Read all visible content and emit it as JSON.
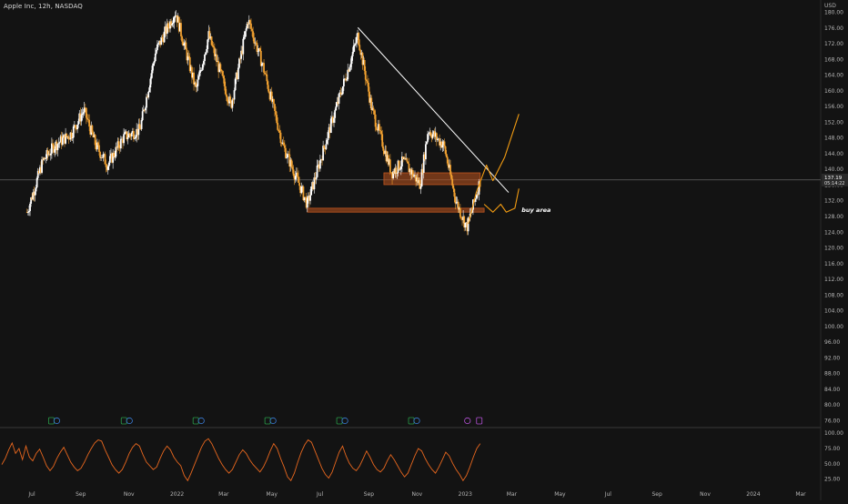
{
  "header": {
    "title": "Apple Inc, 12h, NASDAQ"
  },
  "price_axis": {
    "currency": "USD",
    "current_price": "137.19",
    "countdown": "05:14:22"
  },
  "annotations": {
    "buy_area_label": "buy area"
  },
  "colors": {
    "background": "#131313",
    "candle": "#ffffff",
    "candle_alt": "#f0a030",
    "trendline": "#ffffff",
    "projection": "#f39c12",
    "zone_fill": "#c0561f",
    "rsi": "#e8671e",
    "axis_text": "#b4b4b4"
  },
  "chart_data": [
    {
      "type": "candlestick",
      "title": "Apple Inc, 12h, NASDAQ",
      "ylabel": "USD",
      "ylim": [
        73,
        182
      ],
      "x_ticks": [
        "Jul",
        "Sep",
        "Nov",
        "2022",
        "Mar",
        "May",
        "Jul",
        "Sep",
        "Nov",
        "2023",
        "Mar",
        "May",
        "Jul",
        "Sep",
        "Nov",
        "2024",
        "Mar"
      ],
      "y_ticks": [
        180,
        176,
        172,
        168,
        164,
        160,
        156,
        152,
        148,
        144,
        140,
        136,
        132,
        128,
        124,
        120,
        116,
        112,
        108,
        104,
        100,
        96,
        92,
        88,
        84,
        80,
        76
      ],
      "price_path": [
        [
          "2021-06-25",
          129
        ],
        [
          "2021-07-15",
          142
        ],
        [
          "2021-07-30",
          146
        ],
        [
          "2021-08-20",
          149
        ],
        [
          "2021-09-05",
          155
        ],
        [
          "2021-09-20",
          146
        ],
        [
          "2021-10-05",
          141
        ],
        [
          "2021-10-25",
          148
        ],
        [
          "2021-11-15",
          150
        ],
        [
          "2021-12-05",
          170
        ],
        [
          "2021-12-30",
          180
        ],
        [
          "2022-01-25",
          160
        ],
        [
          "2022-02-10",
          174
        ],
        [
          "2022-03-10",
          156
        ],
        [
          "2022-04-01",
          178
        ],
        [
          "2022-04-20",
          166
        ],
        [
          "2022-05-15",
          146
        ],
        [
          "2022-06-15",
          131
        ],
        [
          "2022-07-10",
          148
        ],
        [
          "2022-08-05",
          165
        ],
        [
          "2022-08-18",
          174
        ],
        [
          "2022-09-05",
          155
        ],
        [
          "2022-09-30",
          139
        ],
        [
          "2022-10-15",
          142
        ],
        [
          "2022-11-05",
          136
        ],
        [
          "2022-11-15",
          150
        ],
        [
          "2022-12-05",
          146
        ],
        [
          "2022-12-20",
          132
        ],
        [
          "2023-01-03",
          125
        ],
        [
          "2023-01-20",
          137
        ]
      ],
      "current_price": 137.19,
      "trendline": {
        "from": [
          "2022-08-18",
          176
        ],
        "to": [
          "2023-02-25",
          134
        ]
      },
      "zones": [
        {
          "from": "2022-09-20",
          "to": "2023-01-20",
          "low": 136,
          "high": 139
        },
        {
          "from": "2022-06-15",
          "to": "2023-01-25",
          "low": 129,
          "high": 130
        }
      ],
      "projection_path": [
        [
          "2023-01-05",
          126
        ],
        [
          "2023-01-15",
          134
        ],
        [
          "2023-01-28",
          141
        ],
        [
          "2023-02-05",
          137
        ],
        [
          "2023-02-20",
          143
        ],
        [
          "2023-03-10",
          154
        ]
      ],
      "projection_path_2": [
        [
          "2023-01-25",
          131
        ],
        [
          "2023-02-05",
          129
        ],
        [
          "2023-02-15",
          131
        ],
        [
          "2023-02-22",
          129
        ],
        [
          "2023-03-05",
          130
        ],
        [
          "2023-03-10",
          135
        ]
      ],
      "buy_area_label": "buy area"
    },
    {
      "type": "line",
      "ylim": [
        15,
        105
      ],
      "y_ticks": [
        100.0,
        75.0,
        50.0,
        25.0
      ],
      "series": [
        {
          "values": [
            48,
            58,
            72,
            83,
            66,
            74,
            56,
            78,
            60,
            54,
            66,
            73,
            60,
            46,
            38,
            45,
            58,
            68,
            76,
            64,
            52,
            44,
            38,
            42,
            52,
            64,
            74,
            83,
            88,
            86,
            72,
            60,
            48,
            40,
            34,
            40,
            52,
            66,
            76,
            82,
            78,
            64,
            52,
            46,
            40,
            44,
            58,
            70,
            78,
            72,
            60,
            52,
            46,
            30,
            22,
            34,
            48,
            62,
            76,
            86,
            90,
            82,
            70,
            58,
            48,
            40,
            34,
            40,
            52,
            64,
            72,
            66,
            56,
            48,
            42,
            36,
            44,
            56,
            70,
            82,
            74,
            58,
            44,
            28,
            22,
            34,
            52,
            68,
            80,
            88,
            84,
            70,
            56,
            42,
            32,
            26,
            36,
            52,
            68,
            78,
            62,
            50,
            42,
            38,
            46,
            58,
            70,
            60,
            48,
            40,
            36,
            42,
            54,
            64,
            56,
            46,
            36,
            28,
            34,
            48,
            62,
            74,
            70,
            58,
            48,
            40,
            34,
            44,
            56,
            68,
            62,
            50,
            40,
            32,
            22,
            30,
            44,
            60,
            74,
            82
          ]
        }
      ]
    }
  ]
}
